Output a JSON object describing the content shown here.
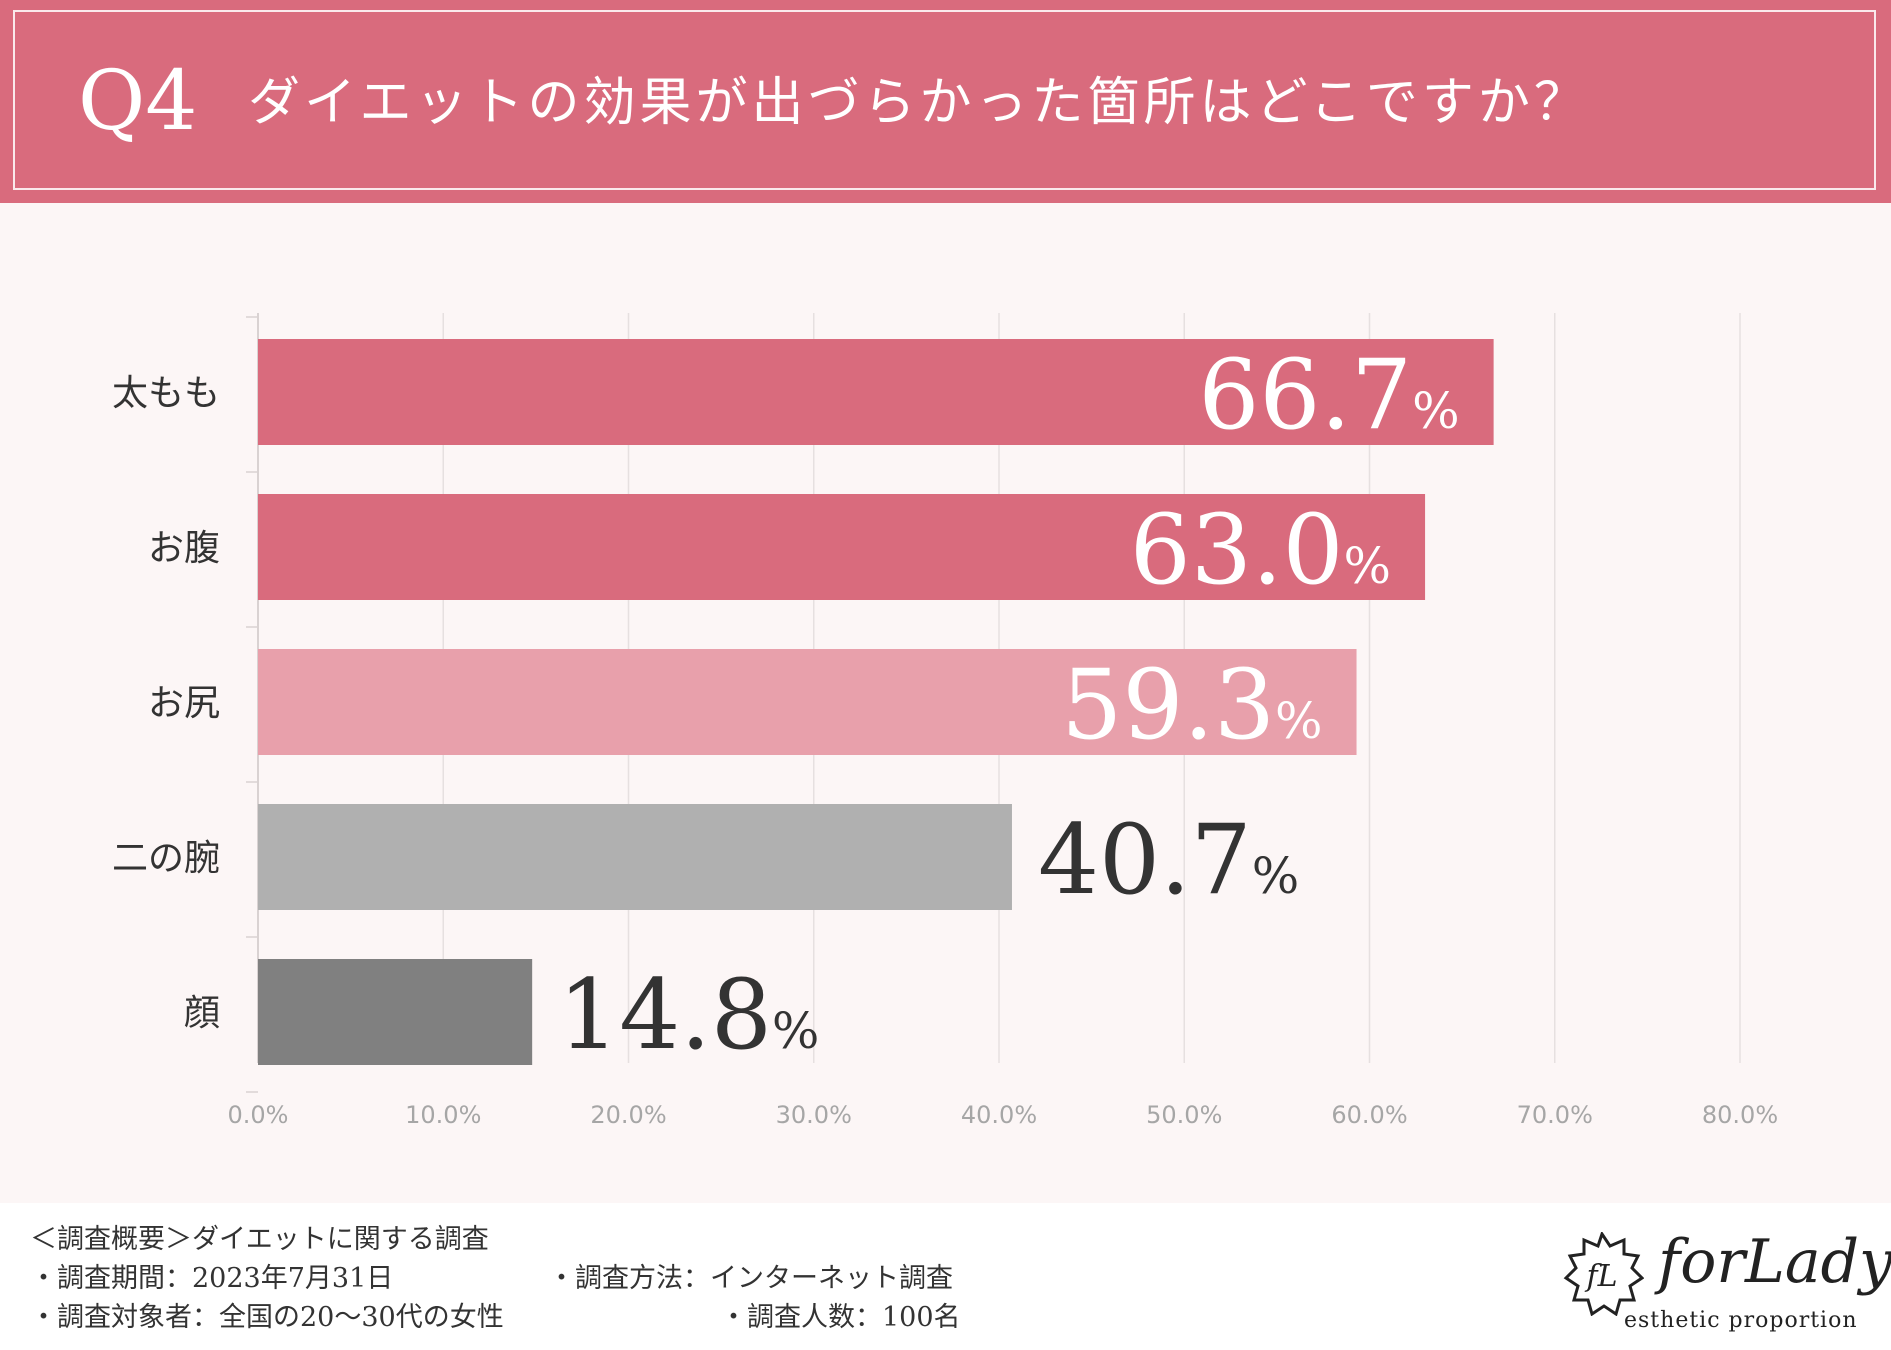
{
  "header": {
    "q_number": "Q4",
    "title": "ダイエットの効果が出づらかった箇所はどこですか？"
  },
  "chart_data": {
    "type": "bar",
    "orientation": "horizontal",
    "categories": [
      "太もも",
      "お腹",
      "お尻",
      "二の腕",
      "顔"
    ],
    "values": [
      66.7,
      63.0,
      59.3,
      40.7,
      14.8
    ],
    "value_labels": [
      "66.7",
      "63.0",
      "59.3",
      "40.7",
      "14.8"
    ],
    "unit": "%",
    "bar_colors": [
      "#d96b7d",
      "#d96b7d",
      "#e8a0ab",
      "#b0b0b0",
      "#808080"
    ],
    "label_inside": [
      true,
      true,
      true,
      false,
      false
    ],
    "xlim": [
      0,
      80
    ],
    "x_ticks": [
      "0.0%",
      "10.0%",
      "20.0%",
      "30.0%",
      "40.0%",
      "50.0%",
      "60.0%",
      "70.0%",
      "80.0%"
    ],
    "grid": true,
    "title": "",
    "xlabel": "",
    "ylabel": ""
  },
  "footer": {
    "overview": "＜調査概要＞ダイエットに関する調査",
    "period": "・調査期間：2023年7月31日",
    "method": "・調査方法：インターネット調査",
    "target": "・調査対象者：全国の20〜30代の女性",
    "count": "・調査人数：100名"
  },
  "logo": {
    "name": "forLady",
    "tagline": "esthetic  proportion",
    "emblem": "fL"
  }
}
